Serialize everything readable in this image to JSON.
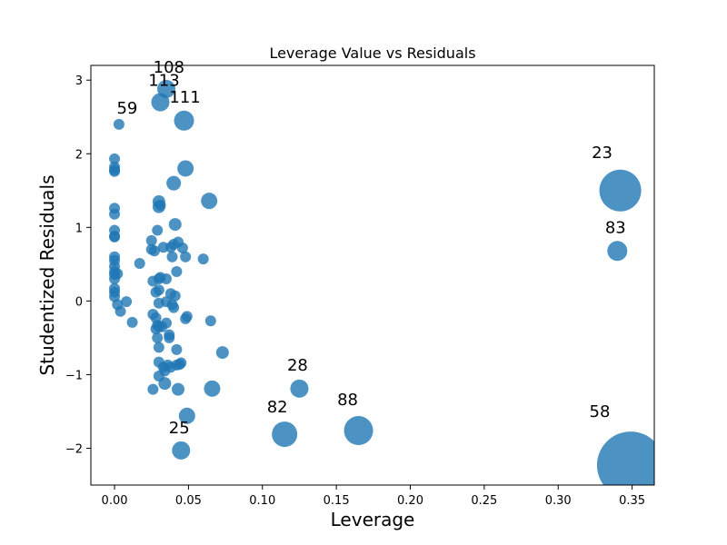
{
  "chart_data": {
    "type": "scatter",
    "title": "Leverage Value vs Residuals",
    "xlabel": "Leverage",
    "ylabel": "Studentized Residuals",
    "xlim": [
      -0.016,
      0.365
    ],
    "ylim": [
      -2.5,
      3.2
    ],
    "xticks": [
      0.0,
      0.05,
      0.1,
      0.15,
      0.2,
      0.25,
      0.3,
      0.35
    ],
    "xtick_labels": [
      "0.00",
      "0.05",
      "0.10",
      "0.15",
      "0.20",
      "0.25",
      "0.30",
      "0.35"
    ],
    "yticks": [
      -2,
      -1,
      0,
      1,
      2,
      3
    ],
    "ytick_labels": [
      "−2",
      "−1",
      "0",
      "1",
      "2",
      "3"
    ],
    "grid": false,
    "marker_color": "#1f77b4",
    "points": [
      {
        "x": 0.0,
        "y": 1.93,
        "s": 6
      },
      {
        "x": 0.0,
        "y": 1.82,
        "s": 6
      },
      {
        "x": 0.0,
        "y": 1.78,
        "s": 6
      },
      {
        "x": 0.0,
        "y": 1.76,
        "s": 6
      },
      {
        "x": 0.0,
        "y": 1.26,
        "s": 6
      },
      {
        "x": 0.0,
        "y": 1.18,
        "s": 6
      },
      {
        "x": 0.0,
        "y": 0.96,
        "s": 6
      },
      {
        "x": 0.0,
        "y": 0.88,
        "s": 6
      },
      {
        "x": 0.0,
        "y": 0.87,
        "s": 6
      },
      {
        "x": 0.0,
        "y": 0.6,
        "s": 6
      },
      {
        "x": 0.0,
        "y": 0.55,
        "s": 6
      },
      {
        "x": 0.0,
        "y": 0.47,
        "s": 6
      },
      {
        "x": 0.0,
        "y": 0.4,
        "s": 6
      },
      {
        "x": 0.0,
        "y": 0.36,
        "s": 6
      },
      {
        "x": 0.0,
        "y": 0.3,
        "s": 6
      },
      {
        "x": 0.0,
        "y": 0.17,
        "s": 6
      },
      {
        "x": 0.0,
        "y": 0.12,
        "s": 6
      },
      {
        "x": 0.0,
        "y": 0.06,
        "s": 6
      },
      {
        "x": 0.002,
        "y": 0.37,
        "s": 6
      },
      {
        "x": 0.002,
        "y": -0.05,
        "s": 6
      },
      {
        "x": 0.003,
        "y": 2.4,
        "s": 6
      },
      {
        "x": 0.004,
        "y": -0.14,
        "s": 6
      },
      {
        "x": 0.008,
        "y": -0.01,
        "s": 6
      },
      {
        "x": 0.012,
        "y": -0.29,
        "s": 6
      },
      {
        "x": 0.017,
        "y": 0.51,
        "s": 6
      },
      {
        "x": 0.025,
        "y": 0.82,
        "s": 6
      },
      {
        "x": 0.025,
        "y": 0.7,
        "s": 6
      },
      {
        "x": 0.026,
        "y": 0.27,
        "s": 6
      },
      {
        "x": 0.026,
        "y": -0.18,
        "s": 6
      },
      {
        "x": 0.026,
        "y": -1.2,
        "s": 6
      },
      {
        "x": 0.027,
        "y": 0.68,
        "s": 6
      },
      {
        "x": 0.028,
        "y": 0.12,
        "s": 6
      },
      {
        "x": 0.028,
        "y": -0.23,
        "s": 6
      },
      {
        "x": 0.028,
        "y": -0.38,
        "s": 6
      },
      {
        "x": 0.029,
        "y": 0.96,
        "s": 6
      },
      {
        "x": 0.029,
        "y": -0.33,
        "s": 6
      },
      {
        "x": 0.029,
        "y": -0.5,
        "s": 6
      },
      {
        "x": 0.03,
        "y": 1.35,
        "s": 7
      },
      {
        "x": 0.03,
        "y": 1.28,
        "s": 7
      },
      {
        "x": 0.03,
        "y": 0.3,
        "s": 6
      },
      {
        "x": 0.03,
        "y": 0.15,
        "s": 6
      },
      {
        "x": 0.03,
        "y": -0.03,
        "s": 6
      },
      {
        "x": 0.03,
        "y": -0.35,
        "s": 6
      },
      {
        "x": 0.03,
        "y": -0.63,
        "s": 6
      },
      {
        "x": 0.03,
        "y": -0.83,
        "s": 6
      },
      {
        "x": 0.03,
        "y": -1.02,
        "s": 6
      },
      {
        "x": 0.031,
        "y": 2.7,
        "s": 10
      },
      {
        "x": 0.031,
        "y": 1.3,
        "s": 6
      },
      {
        "x": 0.031,
        "y": 0.32,
        "s": 6
      },
      {
        "x": 0.032,
        "y": -0.35,
        "s": 6
      },
      {
        "x": 0.033,
        "y": 0.73,
        "s": 6
      },
      {
        "x": 0.033,
        "y": -0.9,
        "s": 6
      },
      {
        "x": 0.034,
        "y": -1.12,
        "s": 7
      },
      {
        "x": 0.034,
        "y": -0.95,
        "s": 6
      },
      {
        "x": 0.035,
        "y": 0.3,
        "s": 6
      },
      {
        "x": 0.035,
        "y": -0.01,
        "s": 6
      },
      {
        "x": 0.035,
        "y": -0.3,
        "s": 6
      },
      {
        "x": 0.035,
        "y": 2.88,
        "s": 10
      },
      {
        "x": 0.036,
        "y": -0.87,
        "s": 6
      },
      {
        "x": 0.037,
        "y": -0.5,
        "s": 6
      },
      {
        "x": 0.037,
        "y": -0.46,
        "s": 6
      },
      {
        "x": 0.038,
        "y": 0.73,
        "s": 6
      },
      {
        "x": 0.038,
        "y": 0.1,
        "s": 6
      },
      {
        "x": 0.038,
        "y": -0.9,
        "s": 6
      },
      {
        "x": 0.039,
        "y": 0.6,
        "s": 6
      },
      {
        "x": 0.039,
        "y": -0.05,
        "s": 6
      },
      {
        "x": 0.04,
        "y": 1.6,
        "s": 8
      },
      {
        "x": 0.04,
        "y": 0.77,
        "s": 6
      },
      {
        "x": 0.04,
        "y": -0.09,
        "s": 6
      },
      {
        "x": 0.041,
        "y": 1.04,
        "s": 7
      },
      {
        "x": 0.041,
        "y": 0.07,
        "s": 6
      },
      {
        "x": 0.042,
        "y": 0.4,
        "s": 6
      },
      {
        "x": 0.042,
        "y": -0.66,
        "s": 6
      },
      {
        "x": 0.042,
        "y": -0.87,
        "s": 6
      },
      {
        "x": 0.043,
        "y": 0.8,
        "s": 6
      },
      {
        "x": 0.043,
        "y": -1.2,
        "s": 7
      },
      {
        "x": 0.044,
        "y": -0.86,
        "s": 6
      },
      {
        "x": 0.045,
        "y": -0.84,
        "s": 6
      },
      {
        "x": 0.045,
        "y": -2.03,
        "s": 10
      },
      {
        "x": 0.046,
        "y": 0.72,
        "s": 6
      },
      {
        "x": 0.047,
        "y": 2.45,
        "s": 11
      },
      {
        "x": 0.048,
        "y": 1.8,
        "s": 9
      },
      {
        "x": 0.048,
        "y": 0.6,
        "s": 6
      },
      {
        "x": 0.048,
        "y": -0.24,
        "s": 6
      },
      {
        "x": 0.049,
        "y": -0.21,
        "s": 6
      },
      {
        "x": 0.049,
        "y": -1.56,
        "s": 9
      },
      {
        "x": 0.06,
        "y": 0.57,
        "s": 6
      },
      {
        "x": 0.064,
        "y": 1.36,
        "s": 9
      },
      {
        "x": 0.065,
        "y": -0.27,
        "s": 6
      },
      {
        "x": 0.066,
        "y": -1.19,
        "s": 9
      },
      {
        "x": 0.073,
        "y": -0.7,
        "s": 7
      },
      {
        "x": 0.115,
        "y": -1.81,
        "s": 14
      },
      {
        "x": 0.125,
        "y": -1.19,
        "s": 10
      },
      {
        "x": 0.165,
        "y": -1.76,
        "s": 16
      },
      {
        "x": 0.34,
        "y": 0.68,
        "s": 11
      },
      {
        "x": 0.342,
        "y": 1.5,
        "s": 23
      },
      {
        "x": 0.349,
        "y": -2.23,
        "s": 37
      }
    ],
    "annotations": [
      {
        "text": "108",
        "x": 0.0355,
        "y": 2.88,
        "dx": 2,
        "dy": -18
      },
      {
        "text": "113",
        "x": 0.031,
        "y": 2.7,
        "dx": 4,
        "dy": -18
      },
      {
        "text": "111",
        "x": 0.047,
        "y": 2.45,
        "dx": 1,
        "dy": -20
      },
      {
        "text": "59",
        "x": 0.003,
        "y": 2.4,
        "dx": 9,
        "dy": -12
      },
      {
        "text": "23",
        "x": 0.342,
        "y": 1.5,
        "dx": -20,
        "dy": -36
      },
      {
        "text": "83",
        "x": 0.34,
        "y": 0.68,
        "dx": -2,
        "dy": -20
      },
      {
        "text": "28",
        "x": 0.125,
        "y": -1.19,
        "dx": -2,
        "dy": -20
      },
      {
        "text": "82",
        "x": 0.115,
        "y": -1.81,
        "dx": -8,
        "dy": -24
      },
      {
        "text": "88",
        "x": 0.165,
        "y": -1.76,
        "dx": -12,
        "dy": -28
      },
      {
        "text": "58",
        "x": 0.349,
        "y": -2.23,
        "dx": -34,
        "dy": -53
      },
      {
        "text": "25",
        "x": 0.045,
        "y": -2.03,
        "dx": -2,
        "dy": -19
      }
    ]
  }
}
